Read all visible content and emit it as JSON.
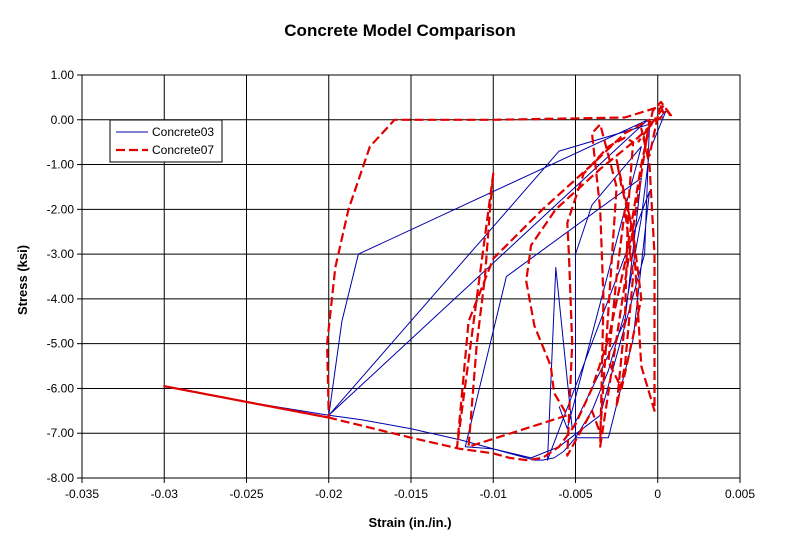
{
  "chart_data": {
    "type": "line",
    "title": "Concrete Model Comparison",
    "xlabel": "Strain (in./in.)",
    "ylabel": "Stress (ksi)",
    "xlim": [
      -0.035,
      0.005
    ],
    "ylim": [
      -8.0,
      1.0
    ],
    "x_ticks": [
      "-0.035",
      "-0.03",
      "-0.025",
      "-0.02",
      "-0.015",
      "-0.01",
      "-0.005",
      "0",
      "0.005"
    ],
    "y_ticks": [
      "1.00",
      "0.00",
      "-1.00",
      "-2.00",
      "-3.00",
      "-4.00",
      "-5.00",
      "-6.00",
      "-7.00",
      "-8.00"
    ],
    "grid": true,
    "legend_position": "top-left",
    "series": [
      {
        "name": "Concrete03",
        "color": "#0000aa",
        "dash": "solid",
        "x": [
          0,
          0.0005,
          -0.0005,
          -0.001,
          -0.002,
          -0.003,
          -0.004,
          -0.005,
          -0.0057,
          -0.0063,
          -0.007,
          -0.0075,
          -0.008,
          -0.009,
          -0.01,
          -0.011,
          -0.012,
          -0.015,
          -0.018,
          -0.02,
          -0.025,
          -0.03,
          -0.025,
          -0.02,
          -0.0192,
          -0.0182,
          -0.0006,
          -0.02,
          -0.006,
          -0.0005,
          -0.0008,
          -0.0035,
          -0.006,
          -0.0077,
          -0.01,
          -0.0117,
          -0.0092,
          -0.001,
          -0.002,
          -0.0052,
          -0.0062,
          -0.0067,
          -0.0005,
          -0.0015,
          -0.003,
          -0.005,
          -0.005,
          -0.004,
          -0.001,
          -0.0055,
          -0.006
        ],
        "y": [
          0,
          0.2,
          -0.7,
          -2.2,
          -4.3,
          -5.6,
          -6.5,
          -7.1,
          -7.4,
          -7.55,
          -7.6,
          -7.6,
          -7.55,
          -7.45,
          -7.35,
          -7.25,
          -7.15,
          -6.9,
          -6.7,
          -6.6,
          -6.3,
          -5.95,
          -6.3,
          -6.6,
          -4.5,
          -3.0,
          0.0,
          -6.6,
          -0.7,
          -0.1,
          -3.0,
          -6.6,
          -7.3,
          -7.55,
          -7.35,
          -7.3,
          -3.5,
          -1.3,
          -4.5,
          -6.9,
          -3.3,
          -7.6,
          -1.6,
          -4.9,
          -7.1,
          -7.1,
          -3.0,
          -1.9,
          -0.6,
          -6.9,
          -6.4
        ]
      },
      {
        "name": "Concrete07",
        "color": "#e00000",
        "dash": "dashed",
        "x": [
          0.0008,
          0.0002,
          -0.0003,
          -0.001,
          -0.002,
          -0.003,
          -0.004,
          -0.005,
          -0.006,
          -0.007,
          -0.008,
          -0.009,
          -0.01,
          -0.011,
          -0.012,
          -0.015,
          -0.02,
          -0.025,
          -0.03,
          -0.025,
          -0.02,
          -0.0201,
          -0.0196,
          -0.0188,
          -0.0175,
          -0.016,
          -0.01,
          -0.002,
          0.0002,
          0.0004,
          -0.0002,
          -0.0015,
          -0.0035,
          -0.0062,
          -0.0077,
          -0.008,
          -0.0075,
          -0.0065,
          -0.0063,
          -0.0055,
          -0.0115,
          -0.011,
          -0.0105,
          -0.0102,
          -0.01,
          -0.0122,
          -0.0115,
          -0.01,
          -0.007,
          -0.004,
          -0.002,
          -0.0005,
          -0.0035,
          -0.0033,
          -0.0035,
          -0.004,
          -0.0035,
          -0.0025,
          -0.0035,
          -0.004,
          -0.0055,
          -0.0052,
          -0.0054,
          -0.0055,
          -0.0045,
          -0.003,
          -0.002,
          -0.0015,
          -0.0018,
          -0.002,
          -0.0025,
          -0.002,
          -0.0015,
          -0.002,
          -0.0025,
          -0.003,
          -0.0022,
          -0.001,
          -0.0015,
          -0.0022,
          -0.0025,
          -0.0015,
          -0.001,
          -0.0002,
          -0.0002,
          -0.0005,
          -0.001,
          -0.0005,
          0.0001,
          0.0003,
          0.0008,
          0.0002,
          -0.0008,
          -0.0012
        ],
        "y": [
          0.1,
          0.4,
          0.2,
          -1.0,
          -3.2,
          -4.9,
          -6.0,
          -6.8,
          -7.3,
          -7.55,
          -7.6,
          -7.55,
          -7.45,
          -7.4,
          -7.35,
          -7.1,
          -6.65,
          -6.3,
          -5.95,
          -6.3,
          -6.65,
          -5.0,
          -3.3,
          -2.0,
          -0.6,
          -0.0,
          0.0,
          0.05,
          0.3,
          0.1,
          -0.05,
          -0.5,
          -1.1,
          -2.0,
          -2.8,
          -3.6,
          -4.6,
          -5.5,
          -6.1,
          -6.6,
          -7.3,
          -5.0,
          -3.5,
          -2.0,
          -1.2,
          -7.3,
          -4.5,
          -3.1,
          -2.0,
          -1.0,
          -0.3,
          0.0,
          -7.3,
          -4.0,
          -2.0,
          -0.3,
          -0.1,
          -1.5,
          -7.0,
          -6.5,
          -7.5,
          -5.0,
          -3.0,
          -2.3,
          -1.2,
          -0.6,
          -0.4,
          -0.5,
          -2.0,
          -4.5,
          -6.4,
          -5.5,
          -3.5,
          -2.0,
          -3.5,
          -5.4,
          -6.0,
          -4.0,
          -2.5,
          -1.5,
          -0.9,
          -2.5,
          -5.5,
          -6.5,
          -3.0,
          -1.0,
          -0.2,
          -0.8,
          0.25,
          0.3,
          0.1,
          0.2,
          -0.3,
          -0.5
        ]
      }
    ]
  }
}
